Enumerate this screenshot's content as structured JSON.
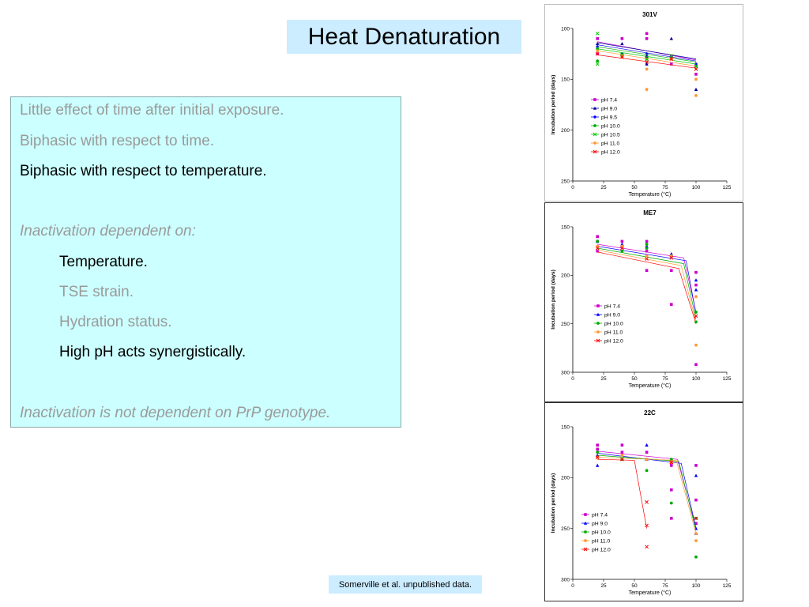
{
  "slide": {
    "title": "Heat Denaturation",
    "lines": [
      "Little effect of time after initial exposure.",
      "Biphasic with respect to time.",
      "Biphasic with respect to temperature.",
      "Inactivation dependent on:",
      "Temperature.",
      "TSE strain.",
      "Hydration status.",
      "High pH acts synergistically.",
      "Inactivation is not dependent on PrP genotype."
    ],
    "citation": "Somerville et al. unpublished data."
  },
  "chart_data": [
    {
      "type": "scatter",
      "title": "301V",
      "xlabel": "Temperature (°C)",
      "ylabel": "Incubation period (days)",
      "xlim": [
        0,
        125
      ],
      "ylim": [
        100,
        250
      ],
      "y_reversed": true,
      "xticks": [
        0,
        25,
        50,
        75,
        100,
        125
      ],
      "yticks": [
        100,
        150,
        200,
        250
      ],
      "legend_position": "center-left",
      "series": [
        {
          "name": "pH 7.4",
          "color": "#cc00cc",
          "marker": "square",
          "points": [
            [
              20,
              110
            ],
            [
              20,
              125
            ],
            [
              40,
              110
            ],
            [
              40,
              126
            ],
            [
              60,
              105
            ],
            [
              60,
              110
            ],
            [
              60,
              128
            ],
            [
              80,
              127
            ],
            [
              80,
              135
            ],
            [
              100,
              137
            ],
            [
              100,
              145
            ]
          ],
          "line": [
            [
              20,
              113
            ],
            [
              100,
              131
            ]
          ]
        },
        {
          "name": "pH 9.0",
          "color": "#000099",
          "marker": "triangle",
          "points": [
            [
              20,
              115
            ],
            [
              40,
              115
            ],
            [
              60,
              127
            ],
            [
              60,
              135
            ],
            [
              80,
              110
            ],
            [
              80,
              127
            ],
            [
              100,
              137
            ],
            [
              100,
              160
            ]
          ],
          "line": [
            [
              20,
              114
            ],
            [
              100,
              130
            ]
          ]
        },
        {
          "name": "pH 9.5",
          "color": "#0000ff",
          "marker": "diamond",
          "points": [
            [
              20,
              118
            ],
            [
              40,
              125
            ],
            [
              60,
              125
            ],
            [
              80,
              128
            ],
            [
              100,
              135
            ]
          ],
          "line": [
            [
              20,
              116
            ],
            [
              100,
              132
            ]
          ]
        },
        {
          "name": "pH 10.0",
          "color": "#00aa00",
          "marker": "circle",
          "points": [
            [
              20,
              120
            ],
            [
              20,
              132
            ],
            [
              40,
              126
            ],
            [
              60,
              130
            ],
            [
              80,
              130
            ],
            [
              100,
              137
            ]
          ],
          "line": [
            [
              20,
              118
            ],
            [
              100,
              133
            ]
          ]
        },
        {
          "name": "pH 10.5",
          "color": "#00cc00",
          "marker": "cross",
          "points": [
            [
              20,
              105
            ],
            [
              20,
              135
            ],
            [
              40,
              126
            ],
            [
              60,
              130
            ],
            [
              80,
              127
            ],
            [
              100,
              140
            ]
          ],
          "line": [
            [
              20,
              120
            ],
            [
              100,
              135
            ]
          ]
        },
        {
          "name": "pH 11.0",
          "color": "#ff9933",
          "marker": "circle",
          "points": [
            [
              20,
              122
            ],
            [
              40,
              128
            ],
            [
              60,
              140
            ],
            [
              60,
              160
            ],
            [
              80,
              130
            ],
            [
              100,
              150
            ],
            [
              100,
              166
            ]
          ],
          "line": [
            [
              20,
              122
            ],
            [
              100,
              137
            ]
          ]
        },
        {
          "name": "pH 12.0",
          "color": "#ff0000",
          "marker": "cross",
          "points": [
            [
              20,
              125
            ],
            [
              40,
              128
            ],
            [
              60,
              133
            ],
            [
              80,
              130
            ],
            [
              100,
              140
            ]
          ],
          "line": [
            [
              20,
              126
            ],
            [
              100,
              139
            ]
          ]
        }
      ]
    },
    {
      "type": "scatter",
      "title": "ME7",
      "xlabel": "Temperature (°C)",
      "ylabel": "Incubation period (days)",
      "xlim": [
        0,
        125
      ],
      "ylim": [
        150,
        300
      ],
      "y_reversed": true,
      "xticks": [
        0,
        25,
        50,
        75,
        100,
        125
      ],
      "yticks": [
        150,
        200,
        250,
        300
      ],
      "legend_position": "center-left",
      "series": [
        {
          "name": "pH 7.4",
          "color": "#cc00cc",
          "marker": "square",
          "points": [
            [
              20,
              160
            ],
            [
              20,
              165
            ],
            [
              20,
              175
            ],
            [
              40,
              165
            ],
            [
              40,
              170
            ],
            [
              60,
              165
            ],
            [
              60,
              175
            ],
            [
              60,
              195
            ],
            [
              80,
              180
            ],
            [
              80,
              195
            ],
            [
              80,
              230
            ],
            [
              100,
              197
            ],
            [
              100,
              210
            ],
            [
              100,
              292
            ]
          ],
          "line": [
            [
              20,
              168
            ],
            [
              90,
              182
            ],
            [
              100,
              238
            ]
          ]
        },
        {
          "name": "pH 9.0",
          "color": "#0000ff",
          "marker": "triangle",
          "points": [
            [
              20,
              165
            ],
            [
              40,
              168
            ],
            [
              60,
              170
            ],
            [
              80,
              178
            ],
            [
              100,
              205
            ],
            [
              100,
              215
            ]
          ],
          "line": [
            [
              20,
              170
            ],
            [
              92,
              185
            ],
            [
              100,
              240
            ]
          ]
        },
        {
          "name": "pH 10.0",
          "color": "#00aa00",
          "marker": "circle",
          "points": [
            [
              20,
              165
            ],
            [
              40,
              175
            ],
            [
              60,
              168
            ],
            [
              60,
              172
            ],
            [
              80,
              180
            ],
            [
              100,
              238
            ],
            [
              100,
              248
            ]
          ],
          "line": [
            [
              20,
              172
            ],
            [
              90,
              188
            ],
            [
              100,
              245
            ]
          ]
        },
        {
          "name": "pH 11.0",
          "color": "#ff9933",
          "marker": "circle",
          "points": [
            [
              20,
              170
            ],
            [
              40,
              170
            ],
            [
              60,
              180
            ],
            [
              80,
              180
            ],
            [
              100,
              222
            ],
            [
              100,
              272
            ]
          ],
          "line": [
            [
              20,
              174
            ],
            [
              88,
              190
            ],
            [
              100,
              248
            ]
          ]
        },
        {
          "name": "pH 12.0",
          "color": "#ff0000",
          "marker": "cross",
          "points": [
            [
              20,
              172
            ],
            [
              40,
              172
            ],
            [
              60,
              183
            ],
            [
              80,
              182
            ],
            [
              100,
              242
            ]
          ],
          "line": [
            [
              20,
              176
            ],
            [
              86,
              193
            ],
            [
              100,
              250
            ]
          ]
        }
      ]
    },
    {
      "type": "scatter",
      "title": "22C",
      "xlabel": "Temperature (°C)",
      "ylabel": "Incubation period (days)",
      "xlim": [
        0,
        125
      ],
      "ylim": [
        150,
        300
      ],
      "y_reversed": true,
      "xticks": [
        0,
        25,
        50,
        75,
        100,
        125
      ],
      "yticks": [
        150,
        200,
        250,
        300
      ],
      "legend_position": "bottom-left",
      "series": [
        {
          "name": "pH 7.4",
          "color": "#cc00cc",
          "marker": "square",
          "points": [
            [
              20,
              168
            ],
            [
              20,
              172
            ],
            [
              40,
              168
            ],
            [
              40,
              175
            ],
            [
              60,
              175
            ],
            [
              60,
              182
            ],
            [
              80,
              188
            ],
            [
              80,
              212
            ],
            [
              80,
              240
            ],
            [
              100,
              188
            ],
            [
              100,
              222
            ],
            [
              100,
              245
            ]
          ],
          "line": [
            [
              20,
              174
            ],
            [
              85,
              182
            ],
            [
              100,
              250
            ]
          ]
        },
        {
          "name": "pH 9.0",
          "color": "#0000ff",
          "marker": "triangle",
          "points": [
            [
              20,
              178
            ],
            [
              20,
              188
            ],
            [
              40,
              182
            ],
            [
              60,
              168
            ],
            [
              60,
              182
            ],
            [
              80,
              185
            ],
            [
              100,
              198
            ],
            [
              100,
              250
            ],
            [
              100,
              255
            ]
          ],
          "line": [
            [
              20,
              176
            ],
            [
              88,
              186
            ],
            [
              100,
              250
            ]
          ]
        },
        {
          "name": "pH 10.0",
          "color": "#00aa00",
          "marker": "circle",
          "points": [
            [
              20,
              175
            ],
            [
              40,
              182
            ],
            [
              60,
              193
            ],
            [
              80,
              182
            ],
            [
              80,
              225
            ],
            [
              100,
              240
            ],
            [
              100,
              278
            ]
          ],
          "line": [
            [
              20,
              178
            ],
            [
              86,
              184
            ],
            [
              100,
              252
            ]
          ]
        },
        {
          "name": "pH 11.0",
          "color": "#ff9933",
          "marker": "circle",
          "points": [
            [
              20,
              180
            ],
            [
              40,
              178
            ],
            [
              60,
              182
            ],
            [
              80,
              185
            ],
            [
              100,
              255
            ],
            [
              100,
              262
            ]
          ],
          "line": [
            [
              20,
              180
            ],
            [
              84,
              183
            ],
            [
              100,
              255
            ]
          ]
        },
        {
          "name": "pH 12.0",
          "color": "#ff0000",
          "marker": "cross",
          "points": [
            [
              20,
              180
            ],
            [
              40,
              182
            ],
            [
              60,
              224
            ],
            [
              60,
              247
            ],
            [
              60,
              268
            ],
            [
              80,
              185
            ],
            [
              100,
              240
            ]
          ],
          "line": [
            [
              20,
              182
            ],
            [
              50,
              183
            ],
            [
              60,
              250
            ]
          ]
        }
      ]
    }
  ]
}
